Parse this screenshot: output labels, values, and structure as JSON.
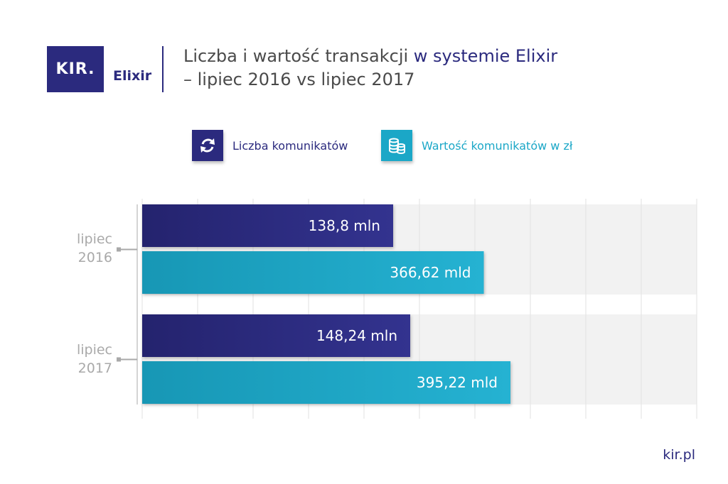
{
  "header": {
    "logo_text": "KIR.",
    "brand_name": "Elixir",
    "title_part1": "Liczba i wartość transakcji ",
    "title_highlight": "w systemie Elixir",
    "title_line2": "– lipiec 2016 vs lipiec 2017"
  },
  "colors": {
    "navy": "#2b2a7e",
    "cyan": "#1ba7c7",
    "label_gray": "#a9a9a9",
    "band_gray": "#f2f2f2"
  },
  "chart_data": {
    "type": "bar",
    "orientation": "horizontal",
    "categories": [
      "lipiec 2016",
      "lipiec 2017"
    ],
    "series": [
      {
        "name": "Liczba komunikatów",
        "values": [
          138.8,
          148.24
        ],
        "unit": "mln",
        "labels": [
          "138,8 mln",
          "148,24 mln"
        ],
        "color": "#2b2a7e",
        "icon": "refresh-arrows-icon"
      },
      {
        "name": "Wartość komunikatów w zł",
        "values": [
          366.62,
          395.22
        ],
        "unit": "mld",
        "labels": [
          "366,62 mld",
          "395,22 mld"
        ],
        "color": "#1ba7c7",
        "icon": "coins-stack-icon"
      }
    ],
    "legend_position": "top",
    "grid": true,
    "xlabel": "",
    "ylabel": ""
  },
  "footer": {
    "website": "kir.pl"
  }
}
